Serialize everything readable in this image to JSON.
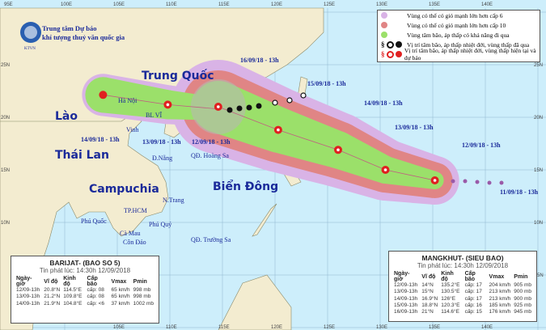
{
  "header": {
    "org_line1": "Trung tâm Dự báo",
    "org_line2": "khí tượng thuỷ văn quốc gia",
    "logo_text": "KTVN"
  },
  "legend": {
    "items": [
      {
        "label": "Vùng có thể có gió mạnh lớn hơn cấp 6",
        "color": "#d9b3e6"
      },
      {
        "label": "Vùng có thể có gió mạnh lớn hơn cấp 10",
        "color": "#e08585"
      },
      {
        "label": "Vùng tâm bão, áp thấp có khả năng đi qua",
        "color": "#9be06a"
      },
      {
        "label": "Vị trí tâm bão, áp thấp nhiệt đới, vùng thấp đã qua",
        "color": "#111111"
      },
      {
        "label": "Vị trí tâm bão, áp thấp nhiệt đới, vùng thấp hiện tại và dự báo",
        "color": "#e02020"
      }
    ]
  },
  "axes": {
    "top": [
      "95E",
      "100E",
      "105E",
      "110E",
      "115E",
      "120E",
      "125E",
      "130E",
      "135E",
      "140E"
    ],
    "bottom": [
      "105E",
      "110E",
      "115E",
      "120E",
      "125E",
      "130E",
      "135E",
      "140E"
    ],
    "left": [
      "25N",
      "20N",
      "15N",
      "10N"
    ],
    "right": [
      "25N",
      "20N",
      "15N",
      "10N",
      "5N"
    ]
  },
  "countries": {
    "china": "Trung Quốc",
    "laos": "Lào",
    "thailand": "Thái Lan",
    "cambodia": "Campuchia",
    "east_sea": "Biển Đông"
  },
  "places": [
    "Hà Nội",
    "BL VĨ",
    "Vinh",
    "Đ.Nẵng",
    "QĐ. Hoàng Sa",
    "N.Trang",
    "TP.HCM",
    "Phú Quốc",
    "Phú Quý",
    "Cà Mau",
    "Côn Đảo",
    "QĐ. Trường Sa"
  ],
  "mangkhut_dates": [
    "16/09/18 - 13h",
    "15/09/18 - 13h",
    "14/09/18 - 13h",
    "13/09/18 - 13h",
    "12/09/18 - 13h",
    "11/09/18 - 13h"
  ],
  "barijat_dates": [
    "14/09/18 - 13h",
    "13/09/18 - 13h",
    "12/09/18 - 13h"
  ],
  "barijat": {
    "title": "BARIJAT- (BAO SO 5)",
    "issued": "Tin phát lúc: 14:30h 12/09/2018",
    "headers": [
      "Ngày-giờ",
      "Vĩ độ",
      "Kinh độ",
      "Cấp bão",
      "Vmax",
      "Pmin"
    ],
    "rows": [
      [
        "12/09-13h",
        "20.8°N",
        "114.5°E",
        "cấp: 08",
        "65 km/h",
        "998 mb"
      ],
      [
        "13/09-13h",
        "21.2°N",
        "109.8°E",
        "cấp: 08",
        "65 km/h",
        "998 mb"
      ],
      [
        "14/09-13h",
        "21.9°N",
        "104.8°E",
        "cấp: <6",
        "37 km/h",
        "1002 mb"
      ]
    ],
    "track": [
      [
        114.5,
        20.8
      ],
      [
        109.8,
        21.2
      ],
      [
        104.8,
        21.9
      ]
    ]
  },
  "mangkhut": {
    "title": "MANGKHUT- (SIEU BAO)",
    "issued": "Tin phát lúc: 14:30h 12/09/2018",
    "headers": [
      "Ngày-giờ",
      "Vĩ độ",
      "Kinh độ",
      "Cấp bão",
      "Vmax",
      "Pmin"
    ],
    "rows": [
      [
        "12/09-13h",
        "14°N",
        "135.2°E",
        "cấp: 17",
        "204 km/h",
        "905 mb"
      ],
      [
        "13/09-13h",
        "15°N",
        "130.5°E",
        "cấp: 17",
        "213 km/h",
        "900 mb"
      ],
      [
        "14/09-13h",
        "16.9°N",
        "126°E",
        "cấp: 17",
        "213 km/h",
        "900 mb"
      ],
      [
        "15/09-13h",
        "18.8°N",
        "120.3°E",
        "cấp: 16",
        "185 km/h",
        "925 mb"
      ],
      [
        "16/09-13h",
        "21°N",
        "114.6°E",
        "cấp: 15",
        "176 km/h",
        "945 mb"
      ]
    ],
    "track": [
      [
        135.2,
        14
      ],
      [
        130.5,
        15
      ],
      [
        126,
        16.9
      ],
      [
        120.3,
        18.8
      ],
      [
        114.6,
        21
      ]
    ]
  },
  "colors": {
    "sea": "#cdeefb",
    "land": "#f3ecd0",
    "grid": "#8fb8d0",
    "level6": "#d9b3e6",
    "level10": "#e08585",
    "center": "#9be06a"
  }
}
